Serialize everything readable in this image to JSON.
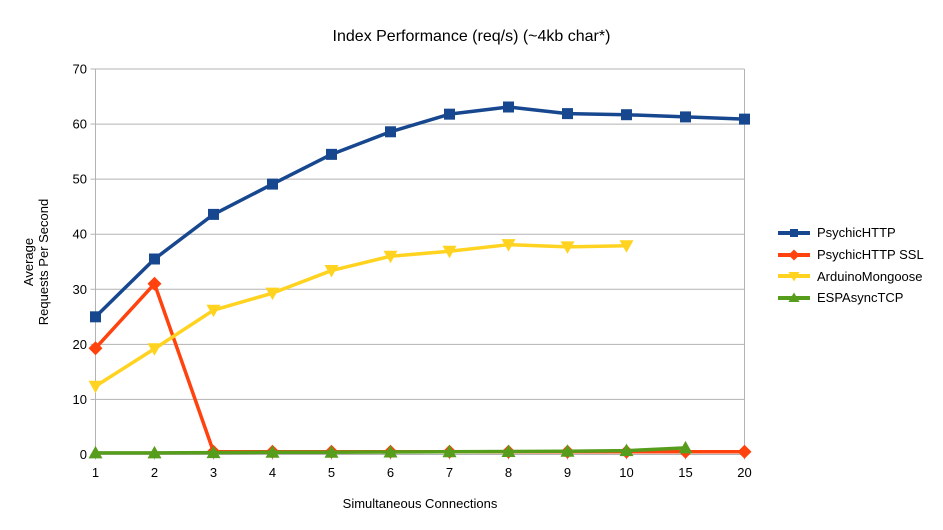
{
  "page": {
    "background": "#ffffff"
  },
  "chart_data": {
    "type": "line",
    "title": "Index Performance (req/s) (~4kb char*)",
    "xlabel": "Simultaneous Connections",
    "ylabel_lines": [
      "Average",
      "Requests Per Second"
    ],
    "categories": [
      "1",
      "2",
      "3",
      "4",
      "5",
      "6",
      "7",
      "8",
      "9",
      "10",
      "15",
      "20"
    ],
    "ylim": [
      0,
      70
    ],
    "yticks": [
      0,
      10,
      20,
      30,
      40,
      50,
      60,
      70
    ],
    "grid": "horizontal",
    "legend_position": "right",
    "axis_color": "#b3b3b3",
    "grid_color": "#b3b3b3",
    "text_color": "#000000",
    "series": [
      {
        "name": "PsychicHTTP",
        "color": "#17478f",
        "marker": "square",
        "values": [
          25,
          35.5,
          43.6,
          49.1,
          54.5,
          58.6,
          61.8,
          63.1,
          61.9,
          61.7,
          61.3,
          60.9
        ]
      },
      {
        "name": "PsychicHTTP SSL",
        "color": "#ff420e",
        "marker": "diamond",
        "values": [
          19.3,
          31,
          0.5,
          0.5,
          0.5,
          0.5,
          0.5,
          0.5,
          0.5,
          0.5,
          0.5,
          0.5
        ]
      },
      {
        "name": "ArduinoMongoose",
        "color": "#ffd320",
        "marker": "triangle-down",
        "values": [
          12.4,
          19.2,
          26.2,
          29.3,
          33.4,
          36,
          36.9,
          38.1,
          37.7,
          37.9,
          null,
          null
        ]
      },
      {
        "name": "ESPAsyncTCP",
        "color": "#579d1c",
        "marker": "triangle-up",
        "values": [
          0.3,
          0.3,
          0.35,
          0.4,
          0.4,
          0.45,
          0.5,
          0.55,
          0.6,
          0.7,
          1.2,
          null
        ]
      }
    ]
  }
}
